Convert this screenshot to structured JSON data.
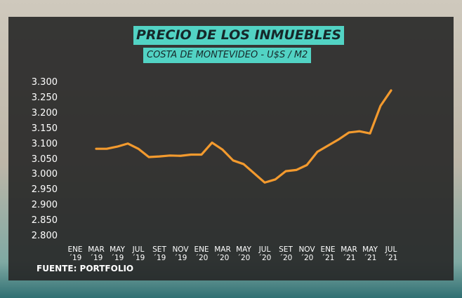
{
  "chart_data": {
    "type": "line",
    "title": "PRECIO DE LOS INMUEBLES",
    "subtitle": "COSTA DE MONTEVIDEO - U$S / M2",
    "source": "FUENTE: PORTFOLIO",
    "categories": [
      "ENE ´19",
      null,
      "MAR ´19",
      null,
      "MAY ´19",
      null,
      "JUL ´19",
      null,
      "SET ´19",
      null,
      "NOV ´19",
      null,
      "ENE ´20",
      null,
      "MAR ´20",
      null,
      "MAY ´20",
      null,
      "JUL ´20",
      null,
      "SET ´20",
      null,
      "NOV ´20",
      null,
      "ENE ´21",
      null,
      "MAR ´21",
      null,
      "MAY ´21",
      null,
      "JUL ´21"
    ],
    "values": [
      null,
      null,
      3085,
      3085,
      3092,
      3102,
      3085,
      3058,
      3060,
      3063,
      3062,
      3066,
      3066,
      3105,
      3082,
      3047,
      3035,
      3005,
      2975,
      2985,
      3012,
      3016,
      3032,
      3075,
      3095,
      3115,
      3138,
      3142,
      3135,
      3225,
      3275
    ],
    "color": "#f39a2e",
    "ylim": [
      2800,
      3300
    ],
    "yticks": [
      {
        "value": 2800,
        "label": "2.800"
      },
      {
        "value": 2850,
        "label": "2.850"
      },
      {
        "value": 2900,
        "label": "2.900"
      },
      {
        "value": 2950,
        "label": "2.950"
      },
      {
        "value": 3000,
        "label": "3.000"
      },
      {
        "value": 3050,
        "label": "3.050"
      },
      {
        "value": 3100,
        "label": "3.100"
      },
      {
        "value": 3150,
        "label": "3.150"
      },
      {
        "value": 3200,
        "label": "3.200"
      },
      {
        "value": 3250,
        "label": "3.250"
      },
      {
        "value": 3300,
        "label": "3.300"
      }
    ],
    "grid": false
  }
}
